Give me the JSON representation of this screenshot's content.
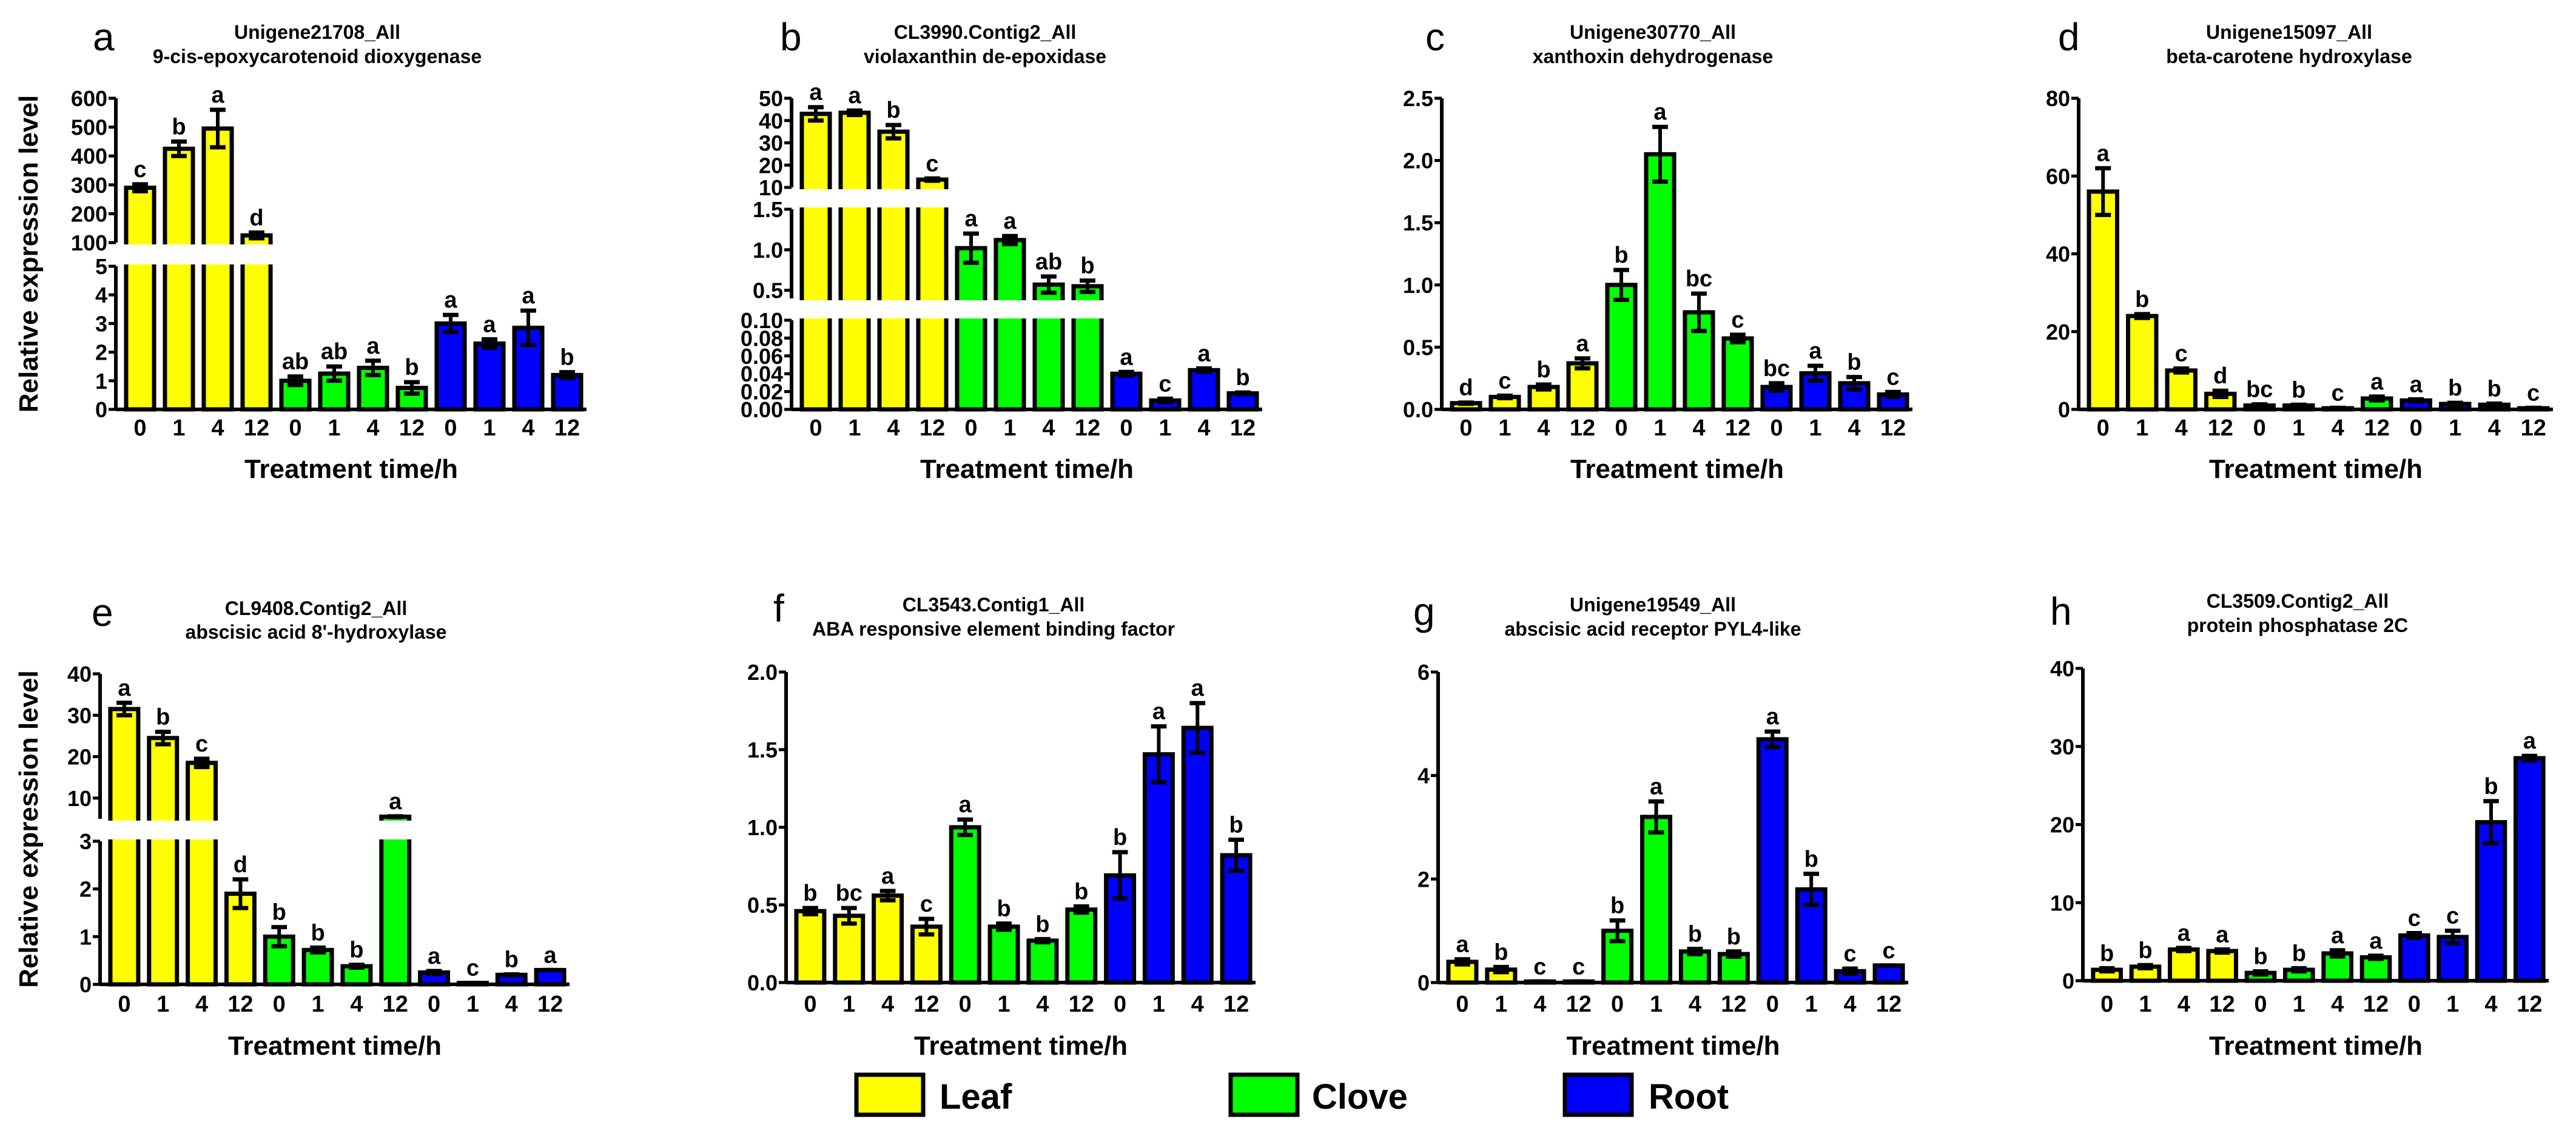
{
  "legend": [
    {
      "label": "Leaf",
      "color": "#ffff00"
    },
    {
      "label": "Clove",
      "color": "#00ff00"
    },
    {
      "label": "Root",
      "color": "#0000ff"
    }
  ],
  "ylabel": "Relative expression level",
  "chart_data": [
    {
      "panel": "a",
      "type": "bar",
      "title": "Unigene21708_All",
      "subtitle": "9-cis-epoxycarotenoid dioxygenase",
      "xlabel": "Treatment time/h",
      "ylabel": "Relative expression level",
      "categories": [
        "0",
        "1",
        "4",
        "12",
        "0",
        "1",
        "4",
        "12",
        "0",
        "1",
        "4",
        "12"
      ],
      "groups": [
        "Leaf",
        "Leaf",
        "Leaf",
        "Leaf",
        "Clove",
        "Clove",
        "Clove",
        "Clove",
        "Root",
        "Root",
        "Root",
        "Root"
      ],
      "values": [
        290,
        425,
        495,
        125,
        1.0,
        1.25,
        1.45,
        0.75,
        3.0,
        2.3,
        2.85,
        1.2
      ],
      "errors": [
        12,
        25,
        65,
        10,
        0.15,
        0.25,
        0.25,
        0.2,
        0.3,
        0.15,
        0.6,
        0.1
      ],
      "letters": [
        "c",
        "b",
        "a",
        "d",
        "ab",
        "ab",
        "a",
        "b",
        "a",
        "a",
        "a",
        "b"
      ],
      "y_segments": [
        {
          "range": [
            0,
            5
          ],
          "ticks": [
            "0",
            "1",
            "2",
            "3",
            "4",
            "5"
          ]
        },
        {
          "range": [
            100,
            600
          ],
          "ticks": [
            "100",
            "200",
            "300",
            "400",
            "500",
            "600"
          ]
        }
      ]
    },
    {
      "panel": "b",
      "type": "bar",
      "title": "CL3990.Contig2_All",
      "subtitle": "violaxanthin de-epoxidase",
      "xlabel": "Treatment time/h",
      "categories": [
        "0",
        "1",
        "4",
        "12",
        "0",
        "1",
        "4",
        "12",
        "0",
        "1",
        "4",
        "12"
      ],
      "groups": [
        "Leaf",
        "Leaf",
        "Leaf",
        "Leaf",
        "Clove",
        "Clove",
        "Clove",
        "Clove",
        "Root",
        "Root",
        "Root",
        "Root"
      ],
      "values": [
        43,
        43.5,
        35,
        13.5,
        1.02,
        1.12,
        0.57,
        0.55,
        0.04,
        0.01,
        0.044,
        0.018
      ],
      "errors": [
        3,
        1,
        3,
        0.5,
        0.18,
        0.05,
        0.1,
        0.07,
        0.002,
        0.002,
        0.002,
        0.001
      ],
      "letters": [
        "a",
        "a",
        "b",
        "c",
        "a",
        "a",
        "ab",
        "b",
        "a",
        "c",
        "a",
        "b"
      ],
      "y_segments": [
        {
          "range": [
            0,
            0.1
          ],
          "ticks": [
            "0.00",
            "0.02",
            "0.04",
            "0.06",
            "0.08",
            "0.10"
          ]
        },
        {
          "range": [
            0.4,
            1.5
          ],
          "ticks": [
            "0.5",
            "1.0",
            "1.5"
          ]
        },
        {
          "range": [
            10,
            50
          ],
          "ticks": [
            "10",
            "20",
            "30",
            "40",
            "50"
          ]
        }
      ]
    },
    {
      "panel": "c",
      "type": "bar",
      "title": "Unigene30770_All",
      "subtitle": "xanthoxin dehydrogenase",
      "xlabel": "Treatment time/h",
      "categories": [
        "0",
        "1",
        "4",
        "12",
        "0",
        "1",
        "4",
        "12",
        "0",
        "1",
        "4",
        "12"
      ],
      "groups": [
        "Leaf",
        "Leaf",
        "Leaf",
        "Leaf",
        "Clove",
        "Clove",
        "Clove",
        "Clove",
        "Root",
        "Root",
        "Root",
        "Root"
      ],
      "values": [
        0.05,
        0.1,
        0.18,
        0.37,
        1.0,
        2.05,
        0.78,
        0.57,
        0.18,
        0.29,
        0.21,
        0.12
      ],
      "errors": [
        0.005,
        0.01,
        0.02,
        0.04,
        0.12,
        0.22,
        0.15,
        0.03,
        0.03,
        0.06,
        0.05,
        0.02
      ],
      "letters": [
        "d",
        "c",
        "b",
        "a",
        "b",
        "a",
        "bc",
        "c",
        "bc",
        "a",
        "b",
        "c"
      ],
      "y_segments": [
        {
          "range": [
            0,
            2.5
          ],
          "ticks": [
            "0.0",
            "0.5",
            "1.0",
            "1.5",
            "2.0",
            "2.5"
          ]
        }
      ]
    },
    {
      "panel": "d",
      "type": "bar",
      "title": "Unigene15097_All",
      "subtitle": "beta-carotene hydroxylase",
      "xlabel": "Treatment time/h",
      "categories": [
        "0",
        "1",
        "4",
        "12",
        "0",
        "1",
        "4",
        "12",
        "0",
        "1",
        "4",
        "12"
      ],
      "groups": [
        "Leaf",
        "Leaf",
        "Leaf",
        "Leaf",
        "Clove",
        "Clove",
        "Clove",
        "Clove",
        "Root",
        "Root",
        "Root",
        "Root"
      ],
      "values": [
        56,
        24,
        10,
        4,
        1,
        1,
        0.3,
        2.8,
        2.3,
        1.4,
        1.2,
        0.3
      ],
      "errors": [
        6,
        0.5,
        0.5,
        0.8,
        0.3,
        0.2,
        0.1,
        0.5,
        0.3,
        0.3,
        0.3,
        0.1
      ],
      "letters": [
        "a",
        "b",
        "c",
        "d",
        "bc",
        "b",
        "c",
        "a",
        "a",
        "b",
        "b",
        "c"
      ],
      "y_segments": [
        {
          "range": [
            0,
            80
          ],
          "ticks": [
            "0",
            "20",
            "40",
            "60",
            "80"
          ]
        }
      ]
    },
    {
      "panel": "e",
      "type": "bar",
      "title": "CL9408.Contig2_All",
      "subtitle": "abscisic acid 8'-hydroxylase",
      "xlabel": "Treatment time/h",
      "ylabel": "Relative expression level",
      "categories": [
        "0",
        "1",
        "4",
        "12",
        "0",
        "1",
        "4",
        "12",
        "0",
        "1",
        "4",
        "12"
      ],
      "groups": [
        "Leaf",
        "Leaf",
        "Leaf",
        "Leaf",
        "Clove",
        "Clove",
        "Clove",
        "Clove",
        "Root",
        "Root",
        "Root",
        "Root"
      ],
      "values": [
        31.5,
        24.5,
        18.5,
        1.9,
        1.0,
        0.72,
        0.38,
        5.5,
        0.25,
        0.03,
        0.2,
        0.3
      ],
      "errors": [
        1.5,
        1.5,
        1,
        0.3,
        0.2,
        0.05,
        0.03,
        0.1,
        0.03,
        0,
        0.01,
        0
      ],
      "letters": [
        "a",
        "b",
        "c",
        "d",
        "b",
        "b",
        "b",
        "a",
        "a",
        "c",
        "b",
        "a"
      ],
      "y_segments": [
        {
          "range": [
            0,
            3
          ],
          "ticks": [
            "0",
            "1",
            "2",
            "3"
          ]
        },
        {
          "range": [
            5,
            40
          ],
          "ticks": [
            "10",
            "20",
            "30",
            "40"
          ]
        }
      ]
    },
    {
      "panel": "f",
      "type": "bar",
      "title": "CL3543.Contig1_All",
      "subtitle": "ABA responsive element binding factor",
      "xlabel": "Treatment time/h",
      "categories": [
        "0",
        "1",
        "4",
        "12",
        "0",
        "1",
        "4",
        "12",
        "0",
        "1",
        "4",
        "12"
      ],
      "groups": [
        "Leaf",
        "Leaf",
        "Leaf",
        "Leaf",
        "Clove",
        "Clove",
        "Clove",
        "Clove",
        "Root",
        "Root",
        "Root",
        "Root"
      ],
      "values": [
        0.46,
        0.43,
        0.56,
        0.36,
        1.0,
        0.36,
        0.27,
        0.47,
        0.69,
        1.47,
        1.64,
        0.82
      ],
      "errors": [
        0.02,
        0.05,
        0.03,
        0.05,
        0.05,
        0.02,
        0.01,
        0.02,
        0.15,
        0.18,
        0.16,
        0.1
      ],
      "letters": [
        "b",
        "bc",
        "a",
        "c",
        "a",
        "b",
        "b",
        "b",
        "b",
        "a",
        "a",
        "b"
      ],
      "y_segments": [
        {
          "range": [
            0,
            2
          ],
          "ticks": [
            "0.0",
            "0.5",
            "1.0",
            "1.5",
            "2.0"
          ]
        }
      ]
    },
    {
      "panel": "g",
      "type": "bar",
      "title": "Unigene19549_All",
      "subtitle": "abscisic acid receptor PYL4-like",
      "xlabel": "Treatment time/h",
      "categories": [
        "0",
        "1",
        "4",
        "12",
        "0",
        "1",
        "4",
        "12",
        "0",
        "1",
        "4",
        "12"
      ],
      "groups": [
        "Leaf",
        "Leaf",
        "Leaf",
        "Leaf",
        "Clove",
        "Clove",
        "Clove",
        "Clove",
        "Root",
        "Root",
        "Root",
        "Root"
      ],
      "values": [
        0.4,
        0.25,
        0.02,
        0.02,
        1.0,
        3.2,
        0.6,
        0.55,
        4.7,
        1.8,
        0.22,
        0.33
      ],
      "errors": [
        0.05,
        0.05,
        0,
        0,
        0.2,
        0.3,
        0.05,
        0.05,
        0.15,
        0.3,
        0.05,
        0
      ],
      "letters": [
        "a",
        "b",
        "c",
        "c",
        "b",
        "a",
        "b",
        "b",
        "a",
        "b",
        "c",
        "c"
      ],
      "y_segments": [
        {
          "range": [
            0,
            6
          ],
          "ticks": [
            "0",
            "2",
            "4",
            "6"
          ]
        }
      ]
    },
    {
      "panel": "h",
      "type": "bar",
      "title": "CL3509.Contig2_All",
      "subtitle": "protein phosphatase 2C",
      "xlabel": "Treatment time/h",
      "categories": [
        "0",
        "1",
        "4",
        "12",
        "0",
        "1",
        "4",
        "12",
        "0",
        "1",
        "4",
        "12"
      ],
      "groups": [
        "Leaf",
        "Leaf",
        "Leaf",
        "Leaf",
        "Clove",
        "Clove",
        "Clove",
        "Clove",
        "Root",
        "Root",
        "Root",
        "Root"
      ],
      "values": [
        1.4,
        1.8,
        4,
        3.8,
        1.0,
        1.4,
        3.5,
        3,
        5.8,
        5.6,
        20.3,
        28.5
      ],
      "errors": [
        0.2,
        0.2,
        0.2,
        0.2,
        0.2,
        0.2,
        0.4,
        0.2,
        0.3,
        0.8,
        2.7,
        0.3
      ],
      "letters": [
        "b",
        "b",
        "a",
        "a",
        "b",
        "b",
        "a",
        "a",
        "c",
        "c",
        "b",
        "a"
      ],
      "y_segments": [
        {
          "range": [
            0,
            40
          ],
          "ticks": [
            "0",
            "10",
            "20",
            "30",
            "40"
          ]
        }
      ]
    }
  ]
}
